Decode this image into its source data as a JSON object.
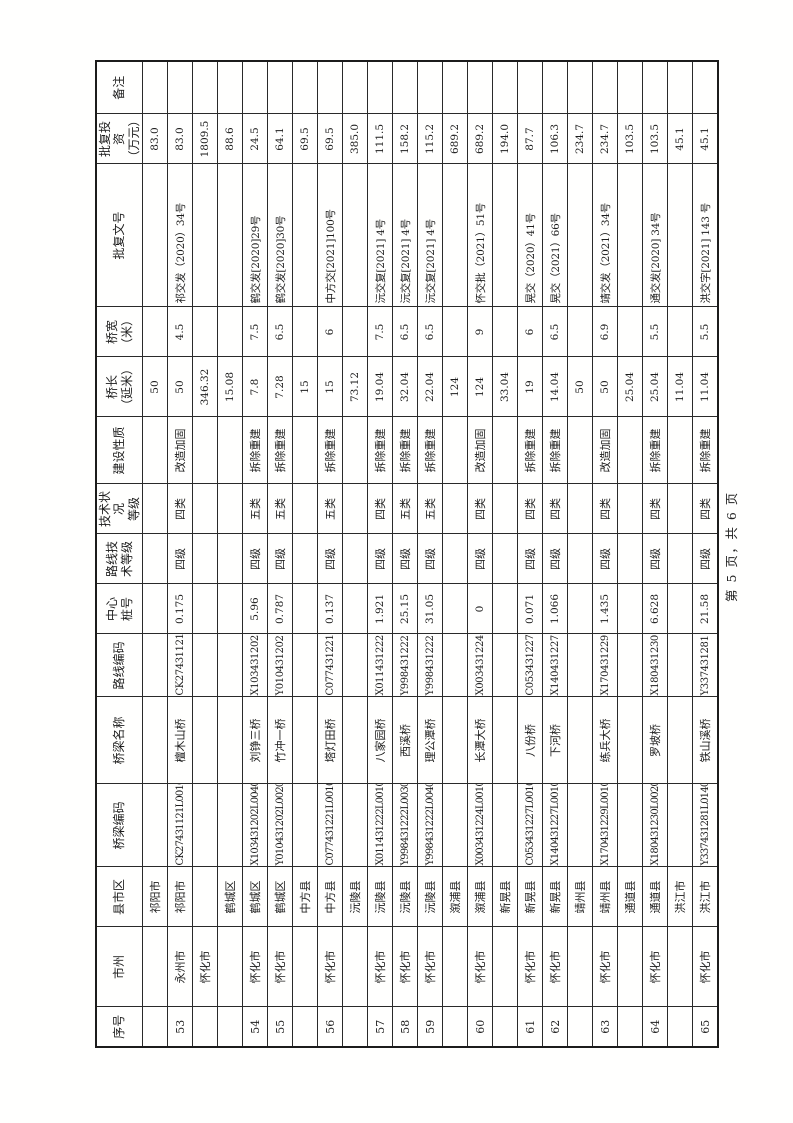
{
  "page": {
    "footer": "第 5 页，共 6 页"
  },
  "table": {
    "header_labels": [
      "序号",
      "市州",
      "县市区",
      "桥梁编码",
      "桥梁名称",
      "路线编码",
      "中心\n桩号",
      "路线技\n术等级",
      "技术状况\n等级",
      "建设性质",
      "桥长\n（延米）",
      "桥宽\n（米）",
      "批复文号",
      "批复投资\n（万元）",
      "备注"
    ],
    "rows": [
      [
        "",
        "",
        "祁阳市",
        "",
        "",
        "",
        "",
        "",
        "",
        "",
        "50",
        "",
        "",
        "83.0",
        ""
      ],
      [
        "53",
        "永州市",
        "祁阳市",
        "CK27431121L0010",
        "檀木山桥",
        "CK27431121",
        "0.175",
        "四级",
        "四类",
        "改造加固",
        "50",
        "4.5",
        "祁交发（2020）34号",
        "83.0",
        ""
      ],
      [
        "",
        "怀化市",
        "",
        "",
        "",
        "",
        "",
        "",
        "",
        "",
        "346.32",
        "",
        "",
        "1809.5",
        ""
      ],
      [
        "",
        "",
        "鹤城区",
        "",
        "",
        "",
        "",
        "",
        "",
        "",
        "15.08",
        "",
        "",
        "88.6",
        ""
      ],
      [
        "54",
        "怀化市",
        "鹤城区",
        "X103431202L0040",
        "刘铮三桥",
        "X103431202",
        "5.96",
        "四级",
        "五类",
        "拆除重建",
        "7.8",
        "7.5",
        "鹤交发[2020]29号",
        "24.5",
        ""
      ],
      [
        "55",
        "怀化市",
        "鹤城区",
        "Y010431202L0020",
        "竹冲一桥",
        "Y010431202",
        "0.787",
        "四级",
        "五类",
        "拆除重建",
        "7.28",
        "6.5",
        "鹤交发[2020]30号",
        "64.1",
        ""
      ],
      [
        "",
        "",
        "中方县",
        "",
        "",
        "",
        "",
        "",
        "",
        "",
        "15",
        "",
        "",
        "69.5",
        ""
      ],
      [
        "56",
        "怀化市",
        "中方县",
        "C077431221L0010",
        "塔灯田桥",
        "C077431221",
        "0.137",
        "四级",
        "五类",
        "拆除重建",
        "15",
        "6",
        "中方交[2021]100号",
        "69.5",
        ""
      ],
      [
        "",
        "",
        "沅陵县",
        "",
        "",
        "",
        "",
        "",
        "",
        "",
        "73.12",
        "",
        "",
        "385.0",
        ""
      ],
      [
        "57",
        "怀化市",
        "沅陵县",
        "X011431222L0010",
        "八家园桥",
        "X011431222",
        "1.921",
        "四级",
        "四类",
        "拆除重建",
        "19.04",
        "7.5",
        "沅交复[2021] 4号",
        "111.5",
        ""
      ],
      [
        "58",
        "怀化市",
        "沅陵县",
        "Y998431222L0030",
        "西溪桥",
        "Y998431222",
        "25.15",
        "四级",
        "五类",
        "拆除重建",
        "32.04",
        "6.5",
        "沅交复[2021] 4号",
        "158.2",
        ""
      ],
      [
        "59",
        "怀化市",
        "沅陵县",
        "Y998431222L0040",
        "理公潭桥",
        "Y998431222",
        "31.05",
        "四级",
        "五类",
        "拆除重建",
        "22.04",
        "6.5",
        "沅交复[2021] 4号",
        "115.2",
        ""
      ],
      [
        "",
        "",
        "溆浦县",
        "",
        "",
        "",
        "",
        "",
        "",
        "",
        "124",
        "",
        "",
        "689.2",
        ""
      ],
      [
        "60",
        "怀化市",
        "溆浦县",
        "X003431224L0010",
        "长潭大桥",
        "X003431224",
        "0",
        "四级",
        "四类",
        "改造加固",
        "124",
        "9",
        "怀交批（2021）51号",
        "689.2",
        ""
      ],
      [
        "",
        "",
        "新晃县",
        "",
        "",
        "",
        "",
        "",
        "",
        "",
        "33.04",
        "",
        "",
        "194.0",
        ""
      ],
      [
        "61",
        "怀化市",
        "新晃县",
        "C053431227L0010",
        "八份桥",
        "C053431227",
        "0.071",
        "四级",
        "四类",
        "拆除重建",
        "19",
        "6",
        "晃交（2020）41号",
        "87.7",
        ""
      ],
      [
        "62",
        "怀化市",
        "新晃县",
        "X140431227L0010",
        "下河桥",
        "X140431227",
        "1.066",
        "四级",
        "四类",
        "拆除重建",
        "14.04",
        "6.5",
        "晃交（2021）66号",
        "106.3",
        ""
      ],
      [
        "",
        "",
        "靖州县",
        "",
        "",
        "",
        "",
        "",
        "",
        "",
        "50",
        "",
        "",
        "234.7",
        ""
      ],
      [
        "63",
        "怀化市",
        "靖州县",
        "X170431229L0010",
        "练兵大桥",
        "X170431229",
        "1.435",
        "四级",
        "四类",
        "改造加固",
        "50",
        "6.9",
        "靖交发（2021）34号",
        "234.7",
        ""
      ],
      [
        "",
        "",
        "通道县",
        "",
        "",
        "",
        "",
        "",
        "",
        "",
        "25.04",
        "",
        "",
        "103.5",
        ""
      ],
      [
        "64",
        "怀化市",
        "通道县",
        "X180431230L0020",
        "罗坡桥",
        "X180431230",
        "6.628",
        "四级",
        "四类",
        "拆除重建",
        "25.04",
        "5.5",
        "通交发[2020] 34号",
        "103.5",
        ""
      ],
      [
        "",
        "",
        "洪江市",
        "",
        "",
        "",
        "",
        "",
        "",
        "",
        "11.04",
        "",
        "",
        "45.1",
        ""
      ],
      [
        "65",
        "怀化市",
        "洪江市",
        "Y337431281L0140",
        "铁山溪桥",
        "Y337431281",
        "21.58",
        "四级",
        "四类",
        "拆除重建",
        "11.04",
        "5.5",
        "洪交字[2021] 143 号",
        "45.1",
        ""
      ]
    ]
  }
}
